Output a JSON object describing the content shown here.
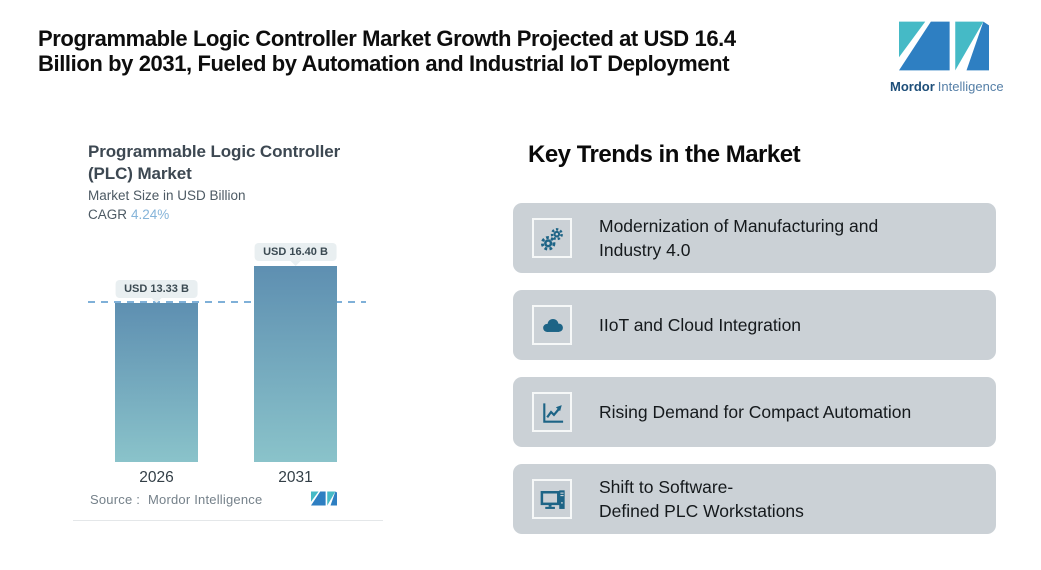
{
  "header": {
    "title": "Programmable Logic Controller Market Growth Projected at USD 16.4\nBillion by 2031, Fueled by Automation and Industrial IoT Deployment"
  },
  "brand": {
    "name_bold": "Mordor",
    "name_light": "Intelligence",
    "teal": "#45bac6",
    "blue": "#2e7fc2"
  },
  "chart": {
    "title": "Programmable Logic Controller\n(PLC) Market",
    "subtitle": "Market Size in USD Billion",
    "cagr_label": "CAGR",
    "cagr_value": "4.24%",
    "source_label": "Source :",
    "source_value": "Mordor Intelligence"
  },
  "chart_data": {
    "type": "bar",
    "title": "Programmable Logic Controller (PLC) Market",
    "ylabel": "Market Size in USD Billion",
    "cagr": "4.24%",
    "categories": [
      "2026",
      "2031"
    ],
    "values": [
      13.33,
      16.4
    ],
    "value_labels": [
      "USD 13.33 B",
      "USD 16.40 B"
    ],
    "ylim": [
      0,
      18
    ],
    "reference_line": 13.33,
    "grid": false,
    "bar_gradient": [
      "#5e8fb1",
      "#8ac3ca"
    ],
    "dashed_line_color": "#7fb0d8"
  },
  "trends": {
    "heading": "Key Trends in the Market",
    "card_bg": "#cbd1d6",
    "icon_color": "#1d6486",
    "items": [
      {
        "icon": "gears-icon",
        "label": "Modernization of Manufacturing and\nIndustry 4.0"
      },
      {
        "icon": "cloud-icon",
        "label": "IIoT and Cloud Integration"
      },
      {
        "icon": "trend-chart-icon",
        "label": "Rising Demand for Compact Automation"
      },
      {
        "icon": "workstation-icon",
        "label": "Shift to Software-\nDefined PLC Workstations"
      }
    ]
  }
}
